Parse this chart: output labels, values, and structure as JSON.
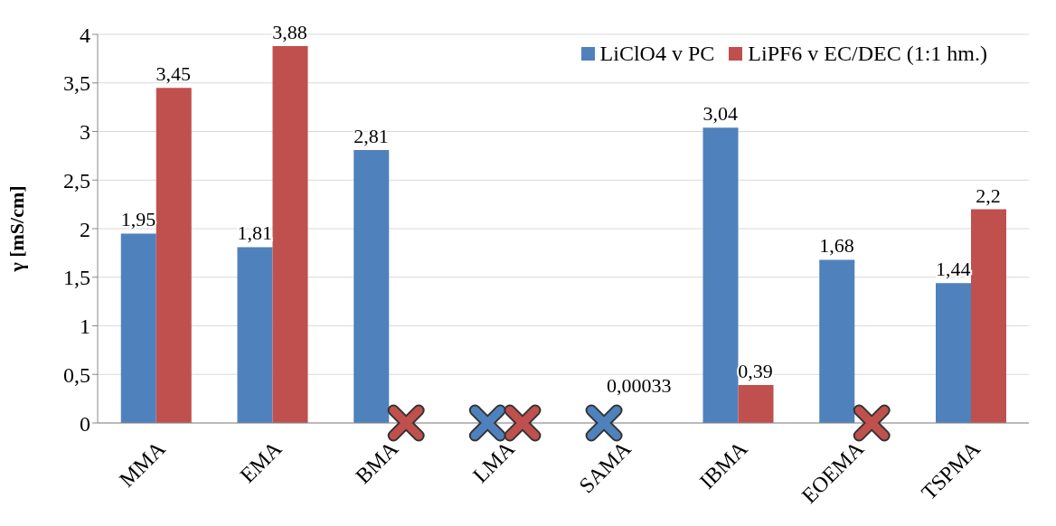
{
  "chart_data": {
    "type": "bar",
    "ylabel": "γ [mS/cm]",
    "categories": [
      "MMA",
      "EMA",
      "BMA",
      "LMA",
      "SAMA",
      "IBMA",
      "EOEMA",
      "TSPMA"
    ],
    "series": [
      {
        "name": "LiClO4 v PC",
        "color": "#4f81bd",
        "values": [
          1.95,
          1.81,
          2.81,
          null,
          null,
          3.04,
          1.68,
          1.44
        ],
        "value_labels": [
          "1,95",
          "1,81",
          "2,81",
          null,
          null,
          "3,04",
          "1,68",
          "1,44"
        ]
      },
      {
        "name": "LiPF6 v EC/DEC (1:1 hm.)",
        "color": "#c0504d",
        "values": [
          3.45,
          3.88,
          null,
          null,
          0.00033,
          0.39,
          null,
          2.2
        ],
        "value_labels": [
          "3,45",
          "3,88",
          null,
          null,
          "0,00033",
          "0,39",
          null,
          "2,2"
        ]
      }
    ],
    "ylim": [
      0,
      4
    ],
    "yticks": [
      0,
      {
        "value": 0.5,
        "label": "0,5"
      },
      1,
      {
        "value": 1.5,
        "label": "1,5"
      },
      2,
      {
        "value": 2.5,
        "label": "2,5"
      },
      3,
      {
        "value": 3.5,
        "label": "3,5"
      },
      4
    ],
    "grid": "y",
    "legend": "top right"
  }
}
